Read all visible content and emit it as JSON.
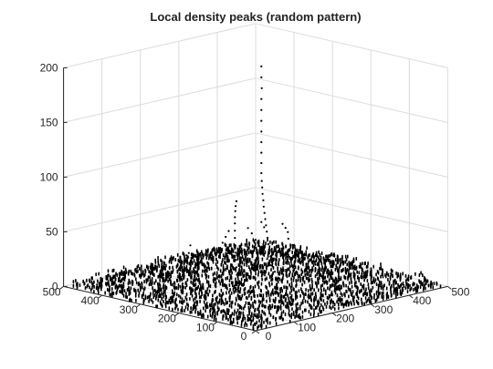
{
  "chart_data": {
    "type": "scatter",
    "subtype": "3d-scatter",
    "title": "Local density peaks (random pattern)",
    "xlabel": "",
    "ylabel": "",
    "zlabel": "",
    "xlim": [
      0,
      500
    ],
    "ylim": [
      0,
      500
    ],
    "zlim": [
      0,
      200
    ],
    "x_ticks": [
      "0",
      "100",
      "200",
      "300",
      "400",
      "500"
    ],
    "y_ticks": [
      "0",
      "100",
      "200",
      "300",
      "400",
      "500"
    ],
    "z_ticks": [
      "0",
      "50",
      "100",
      "150",
      "200"
    ],
    "grid": true,
    "marker_color": "#000000",
    "series": [
      {
        "points": [
          [
            265,
            250,
            200
          ],
          [
            265,
            250,
            190
          ],
          [
            266,
            250,
            180
          ],
          [
            266,
            251,
            170
          ],
          [
            266,
            251,
            160
          ],
          [
            267,
            252,
            150
          ],
          [
            268,
            253,
            140
          ],
          [
            270,
            255,
            130
          ],
          [
            272,
            257,
            120
          ],
          [
            275,
            260,
            110
          ],
          [
            280,
            265,
            100
          ],
          [
            286,
            270,
            92
          ],
          [
            293,
            276,
            85
          ],
          [
            300,
            282,
            78
          ],
          [
            308,
            288,
            71
          ],
          [
            316,
            295,
            64
          ],
          [
            325,
            302,
            57
          ],
          [
            334,
            309,
            50
          ],
          [
            343,
            316,
            43
          ],
          [
            352,
            323,
            36
          ],
          [
            361,
            330,
            29
          ],
          [
            370,
            337,
            22
          ],
          [
            380,
            344,
            15
          ],
          [
            390,
            351,
            8
          ],
          [
            400,
            358,
            3
          ],
          [
            200,
            250,
            82
          ],
          [
            196,
            248,
            78
          ],
          [
            192,
            245,
            74
          ],
          [
            188,
            242,
            69
          ],
          [
            184,
            238,
            64
          ],
          [
            180,
            234,
            58
          ],
          [
            176,
            230,
            52
          ],
          [
            172,
            225,
            46
          ],
          [
            168,
            220,
            40
          ],
          [
            164,
            215,
            34
          ],
          [
            160,
            210,
            28
          ],
          [
            156,
            205,
            22
          ],
          [
            152,
            200,
            16
          ],
          [
            148,
            195,
            10
          ],
          [
            144,
            190,
            5
          ],
          [
            230,
            250,
            55
          ],
          [
            236,
            246,
            50
          ],
          [
            242,
            242,
            44
          ],
          [
            248,
            238,
            38
          ],
          [
            254,
            234,
            32
          ],
          [
            260,
            230,
            26
          ],
          [
            266,
            226,
            20
          ],
          [
            272,
            222,
            14
          ],
          [
            278,
            218,
            8
          ],
          [
            120,
            300,
            35
          ],
          [
            112,
            298,
            30
          ],
          [
            104,
            296,
            25
          ],
          [
            96,
            294,
            20
          ],
          [
            88,
            292,
            15
          ],
          [
            80,
            290,
            10
          ],
          [
            72,
            288,
            5
          ],
          [
            150,
            320,
            40
          ],
          [
            142,
            316,
            34
          ],
          [
            134,
            312,
            28
          ],
          [
            126,
            308,
            22
          ],
          [
            118,
            304,
            16
          ],
          [
            110,
            300,
            10
          ],
          [
            102,
            296,
            5
          ],
          [
            330,
            260,
            50
          ],
          [
            336,
            258,
            46
          ],
          [
            340,
            256,
            42
          ],
          [
            300,
            285,
            52
          ],
          [
            305,
            283,
            47
          ],
          [
            315,
            230,
            40
          ],
          [
            322,
            226,
            34
          ],
          [
            330,
            222,
            28
          ],
          [
            338,
            218,
            22
          ],
          [
            346,
            214,
            16
          ],
          [
            354,
            210,
            10
          ],
          [
            250,
            320,
            45
          ],
          [
            244,
            322,
            40
          ],
          [
            238,
            324,
            35
          ],
          [
            232,
            326,
            30
          ],
          [
            226,
            328,
            25
          ],
          [
            220,
            330,
            20
          ],
          [
            380,
            280,
            25
          ],
          [
            390,
            276,
            20
          ],
          [
            400,
            272,
            15
          ],
          [
            410,
            268,
            10
          ],
          [
            420,
            264,
            5
          ]
        ]
      }
    ]
  }
}
